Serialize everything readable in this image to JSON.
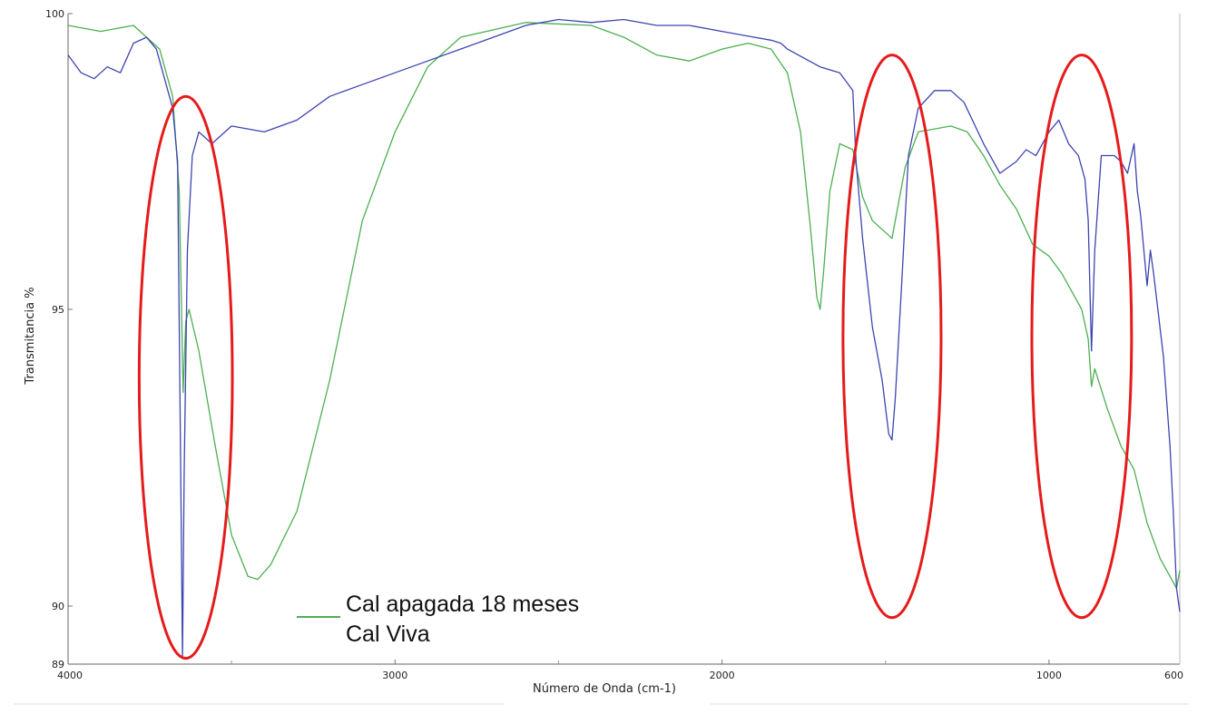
{
  "chart_data": {
    "type": "line",
    "xlabel": "Número de Onda (cm-1)",
    "ylabel": "Transmitancia %",
    "xlim": [
      4000,
      600
    ],
    "ylim": [
      89,
      100
    ],
    "x_ticks": [
      4000,
      3000,
      2000,
      1000,
      600
    ],
    "y_ticks": [
      100,
      95,
      90,
      89
    ],
    "legend": {
      "placement": "bottom-center",
      "entries": [
        "Cal apagada 18 meses",
        "Cal Viva"
      ]
    },
    "series": [
      {
        "name": "Cal apagada 18 meses",
        "color": "#4caf50",
        "points": [
          [
            4000,
            99.8
          ],
          [
            3900,
            99.7
          ],
          [
            3800,
            99.8
          ],
          [
            3720,
            99.4
          ],
          [
            3680,
            98.6
          ],
          [
            3660,
            97.0
          ],
          [
            3648,
            93.6
          ],
          [
            3640,
            94.8
          ],
          [
            3630,
            95.0
          ],
          [
            3600,
            94.3
          ],
          [
            3550,
            92.7
          ],
          [
            3500,
            91.2
          ],
          [
            3450,
            90.5
          ],
          [
            3420,
            90.45
          ],
          [
            3380,
            90.7
          ],
          [
            3300,
            91.6
          ],
          [
            3200,
            93.8
          ],
          [
            3100,
            96.5
          ],
          [
            3000,
            98.0
          ],
          [
            2900,
            99.1
          ],
          [
            2800,
            99.6
          ],
          [
            2600,
            99.85
          ],
          [
            2400,
            99.8
          ],
          [
            2300,
            99.6
          ],
          [
            2200,
            99.3
          ],
          [
            2100,
            99.2
          ],
          [
            2000,
            99.4
          ],
          [
            1920,
            99.5
          ],
          [
            1850,
            99.4
          ],
          [
            1800,
            99.0
          ],
          [
            1760,
            98.0
          ],
          [
            1730,
            96.4
          ],
          [
            1710,
            95.2
          ],
          [
            1700,
            95.0
          ],
          [
            1690,
            95.6
          ],
          [
            1670,
            97.0
          ],
          [
            1640,
            97.8
          ],
          [
            1600,
            97.7
          ],
          [
            1570,
            96.9
          ],
          [
            1540,
            96.5
          ],
          [
            1500,
            96.3
          ],
          [
            1480,
            96.2
          ],
          [
            1460,
            96.8
          ],
          [
            1440,
            97.4
          ],
          [
            1400,
            98.0
          ],
          [
            1300,
            98.1
          ],
          [
            1250,
            98.0
          ],
          [
            1200,
            97.6
          ],
          [
            1150,
            97.1
          ],
          [
            1100,
            96.7
          ],
          [
            1050,
            96.1
          ],
          [
            1000,
            95.9
          ],
          [
            960,
            95.6
          ],
          [
            930,
            95.3
          ],
          [
            900,
            95.0
          ],
          [
            880,
            94.5
          ],
          [
            870,
            93.7
          ],
          [
            860,
            94.0
          ],
          [
            820,
            93.3
          ],
          [
            780,
            92.7
          ],
          [
            740,
            92.3
          ],
          [
            700,
            91.4
          ],
          [
            660,
            90.8
          ],
          [
            630,
            90.5
          ],
          [
            610,
            90.3
          ],
          [
            600,
            90.6
          ]
        ]
      },
      {
        "name": "Cal Viva",
        "color": "#3d44b0",
        "points": [
          [
            4000,
            99.3
          ],
          [
            3960,
            99.0
          ],
          [
            3920,
            98.9
          ],
          [
            3880,
            99.1
          ],
          [
            3840,
            99.0
          ],
          [
            3800,
            99.5
          ],
          [
            3760,
            99.6
          ],
          [
            3730,
            99.4
          ],
          [
            3700,
            98.8
          ],
          [
            3680,
            98.4
          ],
          [
            3665,
            97.5
          ],
          [
            3655,
            92.0
          ],
          [
            3650,
            89.1
          ],
          [
            3645,
            92.2
          ],
          [
            3635,
            96.0
          ],
          [
            3620,
            97.6
          ],
          [
            3600,
            98.0
          ],
          [
            3560,
            97.8
          ],
          [
            3500,
            98.1
          ],
          [
            3400,
            98.0
          ],
          [
            3300,
            98.2
          ],
          [
            3200,
            98.6
          ],
          [
            3100,
            98.8
          ],
          [
            3000,
            99.0
          ],
          [
            2900,
            99.2
          ],
          [
            2800,
            99.4
          ],
          [
            2700,
            99.6
          ],
          [
            2600,
            99.8
          ],
          [
            2500,
            99.9
          ],
          [
            2400,
            99.85
          ],
          [
            2300,
            99.9
          ],
          [
            2200,
            99.8
          ],
          [
            2100,
            99.8
          ],
          [
            2000,
            99.7
          ],
          [
            1900,
            99.6
          ],
          [
            1850,
            99.55
          ],
          [
            1820,
            99.5
          ],
          [
            1800,
            99.4
          ],
          [
            1700,
            99.1
          ],
          [
            1640,
            99.0
          ],
          [
            1600,
            98.7
          ],
          [
            1590,
            97.5
          ],
          [
            1570,
            96.2
          ],
          [
            1540,
            94.7
          ],
          [
            1510,
            93.8
          ],
          [
            1490,
            92.9
          ],
          [
            1480,
            92.8
          ],
          [
            1470,
            93.5
          ],
          [
            1450,
            95.5
          ],
          [
            1430,
            97.6
          ],
          [
            1400,
            98.4
          ],
          [
            1350,
            98.7
          ],
          [
            1300,
            98.7
          ],
          [
            1260,
            98.5
          ],
          [
            1200,
            97.8
          ],
          [
            1150,
            97.3
          ],
          [
            1100,
            97.5
          ],
          [
            1070,
            97.7
          ],
          [
            1040,
            97.6
          ],
          [
            1000,
            98.0
          ],
          [
            970,
            98.2
          ],
          [
            940,
            97.8
          ],
          [
            910,
            97.6
          ],
          [
            890,
            97.2
          ],
          [
            880,
            96.5
          ],
          [
            870,
            94.3
          ],
          [
            860,
            96.0
          ],
          [
            840,
            97.6
          ],
          [
            800,
            97.6
          ],
          [
            780,
            97.5
          ],
          [
            760,
            97.3
          ],
          [
            740,
            97.8
          ],
          [
            730,
            97.0
          ],
          [
            720,
            96.6
          ],
          [
            700,
            95.4
          ],
          [
            690,
            96.0
          ],
          [
            680,
            95.6
          ],
          [
            650,
            94.2
          ],
          [
            630,
            92.7
          ],
          [
            620,
            91.6
          ],
          [
            610,
            90.3
          ],
          [
            600,
            89.9
          ]
        ]
      }
    ],
    "annotations": [
      {
        "type": "ellipse",
        "color": "#e51b1b",
        "x_center": 3640,
        "x_range": [
          3785,
          3500
        ],
        "y_range": [
          89.1,
          98.6
        ]
      },
      {
        "type": "ellipse",
        "color": "#e51b1b",
        "x_center": 1480,
        "x_range": [
          1630,
          1330
        ],
        "y_range": [
          89.8,
          99.3
        ]
      },
      {
        "type": "ellipse",
        "color": "#e51b1b",
        "x_center": 900,
        "x_range": [
          1060,
          755
        ],
        "y_range": [
          89.8,
          99.3
        ]
      }
    ]
  }
}
